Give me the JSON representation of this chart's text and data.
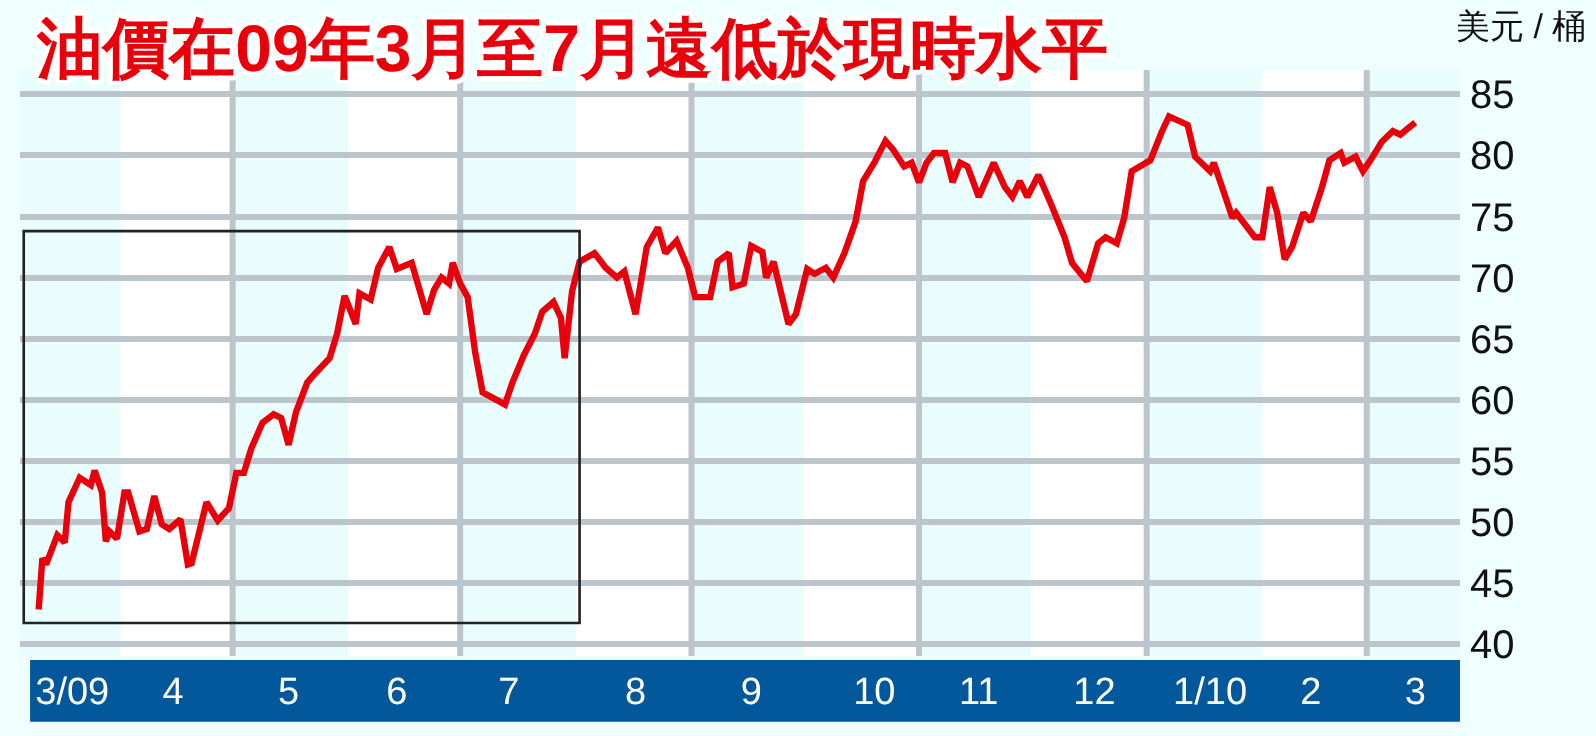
{
  "chart_data": {
    "type": "line",
    "title": "油價在09年3月至7月遠低於現時水平",
    "ylabel": "美元 / 桶",
    "x": [
      "2009-03-10",
      "2009-03-11",
      "2009-03-12",
      "2009-03-15",
      "2009-03-17",
      "2009-03-18",
      "2009-03-21",
      "2009-03-24",
      "2009-03-25",
      "2009-03-27",
      "2009-03-28",
      "2009-03-29",
      "2009-03-31",
      "2009-04-02",
      "2009-04-03",
      "2009-04-06",
      "2009-04-08",
      "2009-04-10",
      "2009-04-12",
      "2009-04-14",
      "2009-04-17",
      "2009-04-19",
      "2009-04-20",
      "2009-04-22",
      "2009-04-24",
      "2009-04-27",
      "2009-04-30",
      "2009-05-02",
      "2009-05-04",
      "2009-05-06",
      "2009-05-09",
      "2009-05-12",
      "2009-05-14",
      "2009-05-16",
      "2009-05-18",
      "2009-05-21",
      "2009-05-23",
      "2009-05-27",
      "2009-05-29",
      "2009-05-31",
      "2009-06-03",
      "2009-06-04",
      "2009-06-07",
      "2009-06-09",
      "2009-06-12",
      "2009-06-14",
      "2009-06-18",
      "2009-06-22",
      "2009-06-24",
      "2009-06-26",
      "2009-06-28",
      "2009-06-29",
      "2009-07-01",
      "2009-07-03",
      "2009-07-05",
      "2009-07-07",
      "2009-07-10",
      "2009-07-13",
      "2009-07-15",
      "2009-07-18",
      "2009-07-21",
      "2009-07-23",
      "2009-07-26",
      "2009-07-28",
      "2009-07-29",
      "2009-07-31",
      "2009-08-02",
      "2009-08-06",
      "2009-08-09",
      "2009-08-12",
      "2009-08-14",
      "2009-08-17",
      "2009-08-20",
      "2009-08-23",
      "2009-08-25",
      "2009-08-28",
      "2009-08-31",
      "2009-09-02",
      "2009-09-06",
      "2009-09-08",
      "2009-09-11",
      "2009-09-12",
      "2009-09-15",
      "2009-09-17",
      "2009-09-20",
      "2009-09-21",
      "2009-09-23",
      "2009-09-27",
      "2009-09-29",
      "2009-10-02",
      "2009-10-04",
      "2009-10-07",
      "2009-10-09",
      "2009-10-12",
      "2009-10-15",
      "2009-10-17",
      "2009-10-20",
      "2009-10-23",
      "2009-10-25",
      "2009-10-28",
      "2009-10-30",
      "2009-11-01",
      "2009-11-03",
      "2009-11-05",
      "2009-11-08",
      "2009-11-10",
      "2009-11-12",
      "2009-11-14",
      "2009-11-17",
      "2009-11-21",
      "2009-11-24",
      "2009-11-26",
      "2009-11-28",
      "2009-11-30",
      "2009-12-03",
      "2009-12-06",
      "2009-12-10",
      "2009-12-12",
      "2009-12-16",
      "2009-12-19",
      "2009-12-21",
      "2009-12-24",
      "2009-12-26",
      "2009-12-28",
      "2010-01-02",
      "2010-01-05",
      "2010-01-07",
      "2010-01-12",
      "2010-01-14",
      "2010-01-18",
      "2010-01-19",
      "2010-01-24",
      "2010-01-25",
      "2010-01-30",
      "2010-02-01",
      "2010-02-03",
      "2010-02-05",
      "2010-02-07",
      "2010-02-09",
      "2010-02-12",
      "2010-02-14",
      "2010-02-17",
      "2010-02-19",
      "2010-02-22",
      "2010-02-23",
      "2010-02-26",
      "2010-02-28",
      "2010-03-02",
      "2010-03-05",
      "2010-03-08",
      "2010-03-10",
      "2010-03-12",
      "2010-03-14"
    ],
    "series": [
      {
        "color": "#e8000b",
        "values": [
          42.8,
          47.0,
          46.5,
          48.9,
          48.3,
          51.6,
          53.6,
          53.0,
          54.2,
          52.4,
          48.4,
          49.2,
          48.6,
          52.4,
          52.4,
          49.2,
          49.4,
          52.1,
          49.8,
          49.4,
          50.2,
          46.5,
          46.6,
          49.1,
          51.6,
          50.1,
          51.1,
          54.0,
          54.0,
          56.0,
          58.1,
          58.8,
          58.5,
          56.3,
          59.0,
          61.4,
          62.1,
          63.4,
          65.4,
          68.5,
          66.2,
          68.7,
          68.2,
          70.8,
          72.5,
          70.7,
          71.2,
          67.0,
          69.0,
          70.0,
          69.5,
          71.2,
          69.5,
          68.4,
          63.9,
          60.6,
          60.1,
          59.6,
          61.4,
          63.6,
          65.4,
          67.2,
          68.0,
          66.7,
          63.4,
          68.9,
          71.3,
          72.0,
          70.8,
          70.0,
          70.5,
          67.0,
          72.5,
          74.1,
          72.0,
          73.0,
          70.8,
          68.4,
          68.4,
          71.3,
          72.0,
          69.2,
          69.5,
          72.6,
          72.1,
          70.0,
          71.3,
          66.2,
          67.0,
          70.7,
          70.3,
          70.8,
          70.0,
          72.0,
          74.6,
          77.9,
          79.4,
          81.2,
          80.5,
          79.1,
          79.4,
          77.8,
          79.4,
          80.2,
          80.2,
          77.8,
          79.4,
          79.1,
          76.6,
          79.4,
          77.4,
          76.6,
          77.9,
          76.6,
          78.4,
          76.3,
          73.3,
          71.2,
          69.7,
          72.8,
          73.3,
          72.8,
          74.9,
          78.7,
          79.6,
          81.9,
          83.2,
          82.5,
          79.9,
          78.7,
          79.4,
          74.9,
          75.3,
          73.3,
          73.3,
          77.4,
          75.3,
          71.5,
          72.5,
          75.3,
          74.6,
          77.4,
          79.6,
          80.2,
          79.4,
          79.9,
          78.7,
          79.6,
          81.1,
          82.0,
          81.7,
          82.2,
          82.7
        ]
      }
    ],
    "xlim": [
      "2009-03-05",
      "2010-03-26"
    ],
    "xticks": [
      {
        "value": "2009-03-19",
        "label": "3/09"
      },
      {
        "value": "2009-04-15",
        "label": "4"
      },
      {
        "value": "2009-05-01",
        "label": null
      },
      {
        "value": "2009-05-16",
        "label": "5"
      },
      {
        "value": "2009-06-14",
        "label": "6"
      },
      {
        "value": "2009-07-01",
        "label": null
      },
      {
        "value": "2009-07-14",
        "label": "7"
      },
      {
        "value": "2009-08-17",
        "label": "8"
      },
      {
        "value": "2009-09-01",
        "label": null
      },
      {
        "value": "2009-09-17",
        "label": "9"
      },
      {
        "value": "2009-10-20",
        "label": "10"
      },
      {
        "value": "2009-11-01",
        "label": null
      },
      {
        "value": "2009-11-17",
        "label": "11"
      },
      {
        "value": "2009-12-18",
        "label": "12"
      },
      {
        "value": "2010-01-01",
        "label": null
      },
      {
        "value": "2010-01-18",
        "label": "1/10"
      },
      {
        "value": "2010-02-14",
        "label": "2"
      },
      {
        "value": "2010-03-01",
        "label": null
      },
      {
        "value": "2010-03-14",
        "label": "3"
      }
    ],
    "ylim": [
      39,
      87
    ],
    "yticks": [
      40,
      45,
      50,
      55,
      60,
      65,
      70,
      75,
      80,
      85
    ],
    "bands": [
      {
        "axis": "x",
        "from": "2009-03-05",
        "to": "2009-04-01",
        "color": "#eafdfd"
      },
      {
        "axis": "x",
        "from": "2009-05-01",
        "to": "2009-06-01",
        "color": "#eafdfd"
      },
      {
        "axis": "x",
        "from": "2009-07-01",
        "to": "2009-08-01",
        "color": "#eafdfd"
      },
      {
        "axis": "x",
        "from": "2009-09-01",
        "to": "2009-10-01",
        "color": "#eafdfd"
      },
      {
        "axis": "x",
        "from": "2009-11-01",
        "to": "2009-12-01",
        "color": "#eafdfd"
      },
      {
        "axis": "x",
        "from": "2010-01-01",
        "to": "2010-02-01",
        "color": "#eafdfd"
      },
      {
        "axis": "x",
        "from": "2010-03-01",
        "to": "2010-03-26",
        "color": "#eafdfd"
      }
    ],
    "grid": true,
    "marker": "none",
    "line_style": "solid"
  }
}
